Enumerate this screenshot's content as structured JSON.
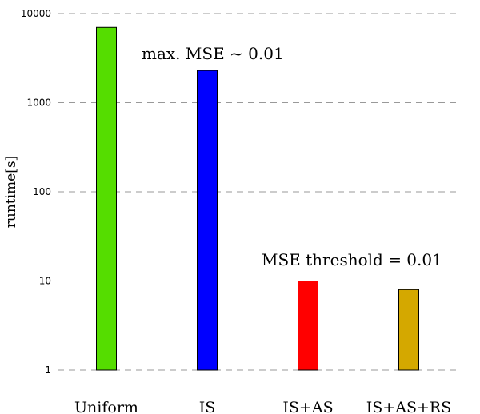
{
  "chart_data": {
    "type": "bar",
    "title": "",
    "xlabel": "",
    "ylabel": "runtime[s]",
    "yscale": "log",
    "ylim": [
      1,
      10000
    ],
    "yticks": [
      {
        "value": 1,
        "label": "1"
      },
      {
        "value": 10,
        "label": "10"
      },
      {
        "value": 100,
        "label": "100"
      },
      {
        "value": 1000,
        "label": "1000"
      },
      {
        "value": 10000,
        "label": "10000"
      }
    ],
    "grid": true,
    "categories": [
      "Uniform",
      "IS",
      "IS+AS",
      "IS+AS+RS"
    ],
    "values": [
      7000,
      2300,
      10,
      8
    ],
    "colors": [
      "#55dd00",
      "#0000ff",
      "#ff0000",
      "#d4a800"
    ],
    "annotations": [
      {
        "text": "max. MSE ~ 0.01",
        "near": "IS"
      },
      {
        "text": "MSE threshold = 0.01",
        "near": "IS+AS+RS"
      }
    ]
  }
}
